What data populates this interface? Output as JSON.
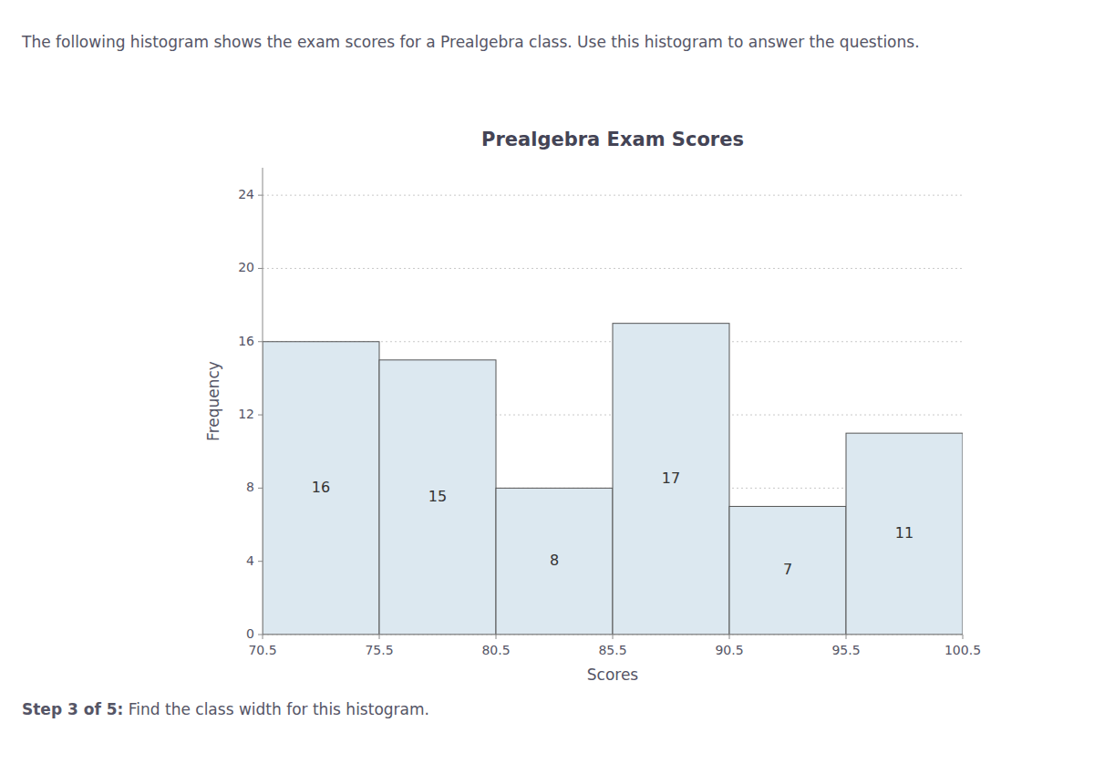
{
  "chart_data": {
    "type": "histogram",
    "title": "Prealgebra Exam Scores",
    "subtitle": "The following histogram shows the exam scores for a Prealgebra class. Use this histogram to answer the questions.",
    "annotations": [
      "Step 3 of 5:",
      " Find the class width for this histogram."
    ],
    "x_label": "Scores",
    "y_label": "Frequency",
    "bins": [
      70.5,
      75.5,
      80.5,
      85.5,
      90.5,
      95.5,
      100.5
    ],
    "values": [
      16,
      15,
      8,
      17,
      7,
      11
    ],
    "color": "#dce8f0",
    "xlim": [
      70.5,
      100.5
    ],
    "xticks": [
      70.5,
      75.5,
      80.5,
      85.5,
      90.5,
      95.5,
      100.5
    ],
    "ylim": [
      0,
      25.5
    ],
    "yticks": [
      0,
      4,
      8,
      12,
      16,
      20,
      24
    ],
    "grid": true,
    "data_labels": true
  }
}
